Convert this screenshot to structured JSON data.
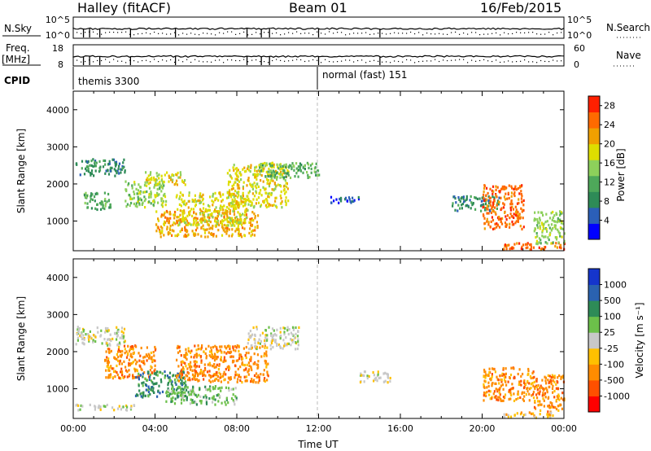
{
  "header": {
    "station": "Halley (fitACF)",
    "beam": "Beam 01",
    "date": "16/Feb/2015"
  },
  "panels": {
    "nsky": {
      "left_label": "N.Sky",
      "right_label": "N.Search",
      "left_ticks": [
        "10^5",
        "10^0"
      ],
      "right_ticks": [
        "10^5",
        "10^0"
      ]
    },
    "freq": {
      "left_label_top": "Freq.",
      "left_label_bottom": "[MHz]",
      "right_label": "Nave",
      "left_ticks": [
        "18",
        "8"
      ],
      "right_ticks": [
        "60",
        "0"
      ]
    },
    "cpid": {
      "label": "CPID",
      "modes": [
        {
          "name": "themis 3300",
          "start_hour": 0
        },
        {
          "name": "normal (fast) 151",
          "start_hour": 12
        }
      ]
    }
  },
  "chart_data": [
    {
      "type": "heatmap",
      "parameter": "power",
      "xlabel": "",
      "ylabel": "Slant Range [km]",
      "xlim": [
        0,
        24
      ],
      "ylim": [
        200,
        4500
      ],
      "yticks": [
        "1000",
        "2000",
        "3000",
        "4000"
      ],
      "colorbar": {
        "label": "Power [dB]",
        "ticks": [
          "4",
          "8",
          "12",
          "16",
          "20",
          "24",
          "28"
        ],
        "range": [
          0,
          30
        ],
        "colors": [
          "#0000ff",
          "#2b5fb8",
          "#2e8b57",
          "#4ea85a",
          "#8dd05b",
          "#dede00",
          "#f0a000",
          "#ff6a00",
          "#ff2000"
        ]
      },
      "regions": [
        {
          "x": [
            0.1,
            2.5
          ],
          "y": [
            2250,
            2700
          ],
          "level": 6
        },
        {
          "x": [
            0.5,
            1.8
          ],
          "y": [
            1300,
            1800
          ],
          "level": 10
        },
        {
          "x": [
            2.5,
            4.5
          ],
          "y": [
            1400,
            2100
          ],
          "level": 12
        },
        {
          "x": [
            3.5,
            5.5
          ],
          "y": [
            2000,
            2350
          ],
          "level": 14
        },
        {
          "x": [
            4.0,
            9.0
          ],
          "y": [
            600,
            1300
          ],
          "level": 18
        },
        {
          "x": [
            5.0,
            8.5
          ],
          "y": [
            900,
            1800
          ],
          "level": 16
        },
        {
          "x": [
            7.5,
            10.5
          ],
          "y": [
            1400,
            2600
          ],
          "level": 15
        },
        {
          "x": [
            9.0,
            12.0
          ],
          "y": [
            2200,
            2600
          ],
          "level": 8
        },
        {
          "x": [
            12.5,
            14.0
          ],
          "y": [
            1500,
            1700
          ],
          "level": 4
        },
        {
          "x": [
            18.5,
            20.8
          ],
          "y": [
            1300,
            1700
          ],
          "level": 6
        },
        {
          "x": [
            20.0,
            22.0
          ],
          "y": [
            800,
            2000
          ],
          "level": 20
        },
        {
          "x": [
            21.0,
            24.0
          ],
          "y": [
            250,
            450
          ],
          "level": 22
        },
        {
          "x": [
            22.5,
            24.0
          ],
          "y": [
            400,
            1300
          ],
          "level": 12
        }
      ]
    },
    {
      "type": "heatmap",
      "parameter": "velocity",
      "xlabel": "Time UT",
      "ylabel": "Slant Range [km]",
      "xlim": [
        0,
        24
      ],
      "ylim": [
        200,
        4500
      ],
      "xticks": [
        "00:00",
        "04:00",
        "08:00",
        "12:00",
        "16:00",
        "20:00",
        "00:00"
      ],
      "yticks": [
        "1000",
        "2000",
        "3000",
        "4000"
      ],
      "colorbar": {
        "label": "Velocity [m s⁻¹]",
        "ticks": [
          "1000",
          "500",
          "100",
          "25",
          "-25",
          "-100",
          "-500",
          "-1000"
        ],
        "colors": [
          "#1535cc",
          "#2a62b0",
          "#2e8b57",
          "#6cc04a",
          "#c8c8c8",
          "#ffc000",
          "#ff8c00",
          "#ff5000",
          "#ff0000"
        ]
      },
      "regions": [
        {
          "x": [
            0.1,
            2.5
          ],
          "y": [
            2200,
            2700
          ],
          "vel": 0
        },
        {
          "x": [
            1.5,
            4.0
          ],
          "y": [
            1300,
            2200
          ],
          "vel": -200
        },
        {
          "x": [
            3.0,
            5.5
          ],
          "y": [
            800,
            1500
          ],
          "vel": 300
        },
        {
          "x": [
            4.5,
            8.0
          ],
          "y": [
            600,
            1100
          ],
          "vel": 60
        },
        {
          "x": [
            5.0,
            9.5
          ],
          "y": [
            1200,
            2200
          ],
          "vel": -200
        },
        {
          "x": [
            8.5,
            11.0
          ],
          "y": [
            2100,
            2700
          ],
          "vel": 0
        },
        {
          "x": [
            0.1,
            3.0
          ],
          "y": [
            450,
            600
          ],
          "vel": 0
        },
        {
          "x": [
            20.0,
            22.5
          ],
          "y": [
            700,
            1600
          ],
          "vel": -200
        },
        {
          "x": [
            22.5,
            24.0
          ],
          "y": [
            400,
            1400
          ],
          "vel": -200
        },
        {
          "x": [
            21.0,
            23.5
          ],
          "y": [
            250,
            400
          ],
          "vel": -50
        },
        {
          "x": [
            14.0,
            15.5
          ],
          "y": [
            1200,
            1500
          ],
          "vel": 0
        }
      ]
    }
  ]
}
